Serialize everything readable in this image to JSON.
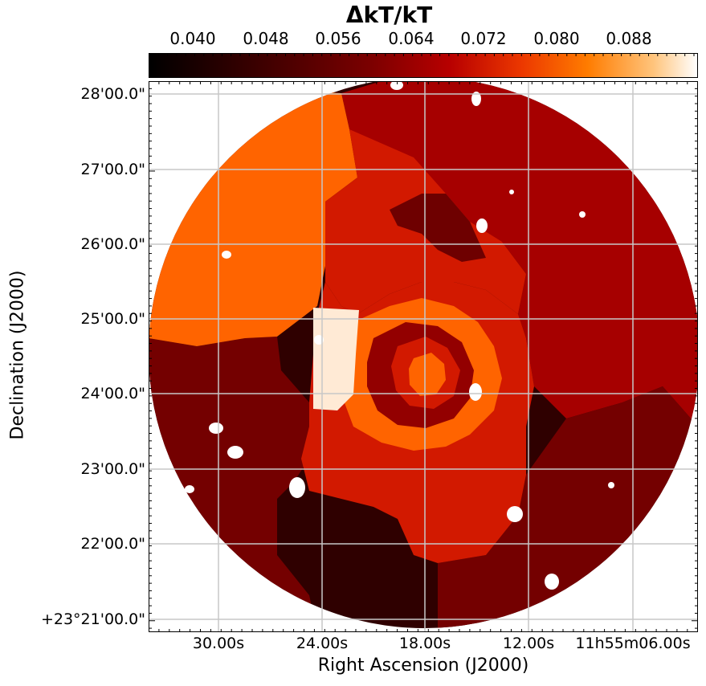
{
  "chart_data": {
    "type": "heatmap",
    "title": "ΔkT/kT",
    "xlabel": "Right Ascension (J2000)",
    "ylabel": "Declination (J2000)",
    "colorbar": {
      "ticks": [
        "0.040",
        "0.048",
        "0.056",
        "0.064",
        "0.072",
        "0.080",
        "0.088"
      ],
      "tick_values": [
        0.04,
        0.048,
        0.056,
        0.064,
        0.072,
        0.08,
        0.088
      ],
      "range": [
        0.0345,
        0.0955
      ],
      "colormap": "gist_heat",
      "location": "top"
    },
    "x_ticks": [
      "30.00s",
      "24.00s",
      "18.00s",
      "12.00s",
      "11h55m06.00s"
    ],
    "y_ticks": [
      "28'00.0\"",
      "27'00.0\"",
      "26'00.0\"",
      "25'00.0\"",
      "24'00.0\"",
      "23'00.0\"",
      "22'00.0\"",
      "+23°21'00.0\""
    ],
    "grid": true,
    "region_values": {
      "outer_west": 0.077,
      "outer_north_east": 0.061,
      "outer_south_east": 0.053,
      "outer_south_west": 0.053,
      "outer_south": 0.042,
      "mid_north_ring": 0.068,
      "dark_north_patch": 0.052,
      "central_ring": 0.068,
      "inner_ring": 0.077,
      "inner_core_dark": 0.058,
      "core_inner": 0.068,
      "core_bright": 0.077,
      "west_bright_strip": 0.093
    }
  },
  "colors": {
    "background": "#ffffff",
    "grid": "#c8c8c8",
    "mask": "#ffffff"
  }
}
